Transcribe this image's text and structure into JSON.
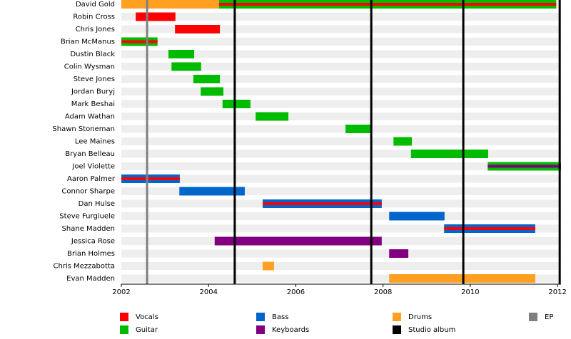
{
  "chart_data": {
    "type": "timeline",
    "roles": [
      {
        "name": "Vocals",
        "color": "#ff0000"
      },
      {
        "name": "Guitar",
        "color": "#00bb00"
      },
      {
        "name": "Bass",
        "color": "#0066cc"
      },
      {
        "name": "Keyboards",
        "color": "#800080"
      },
      {
        "name": "Drums",
        "color": "#ffa020"
      }
    ],
    "releases": [
      {
        "name": "Studio album",
        "color": "#000000",
        "values": [
          2004.6,
          2007.73,
          2009.84,
          2012.05
        ]
      },
      {
        "name": "EP",
        "color": "#808080",
        "values": [
          2002.59
        ]
      }
    ],
    "members": [
      {
        "name": "David Gold",
        "bars": [
          {
            "roles": [
              "Drums"
            ],
            "start": 2002.0,
            "end": 2004.24
          },
          {
            "roles": [
              "Guitar",
              "Vocals"
            ],
            "start": 2004.24,
            "end": 2011.97
          }
        ]
      },
      {
        "name": "Robin Cross",
        "bars": [
          {
            "roles": [
              "Vocals"
            ],
            "start": 2002.33,
            "end": 2003.24
          }
        ]
      },
      {
        "name": "Chris Jones",
        "bars": [
          {
            "roles": [
              "Vocals"
            ],
            "start": 2003.23,
            "end": 2004.26
          }
        ]
      },
      {
        "name": "Brian McManus",
        "bars": [
          {
            "roles": [
              "Guitar",
              "Vocals"
            ],
            "start": 2002.0,
            "end": 2002.83
          }
        ]
      },
      {
        "name": "Dustin Black",
        "bars": [
          {
            "roles": [
              "Guitar"
            ],
            "start": 2003.08,
            "end": 2003.67
          }
        ]
      },
      {
        "name": "Colin Wysman",
        "bars": [
          {
            "roles": [
              "Guitar"
            ],
            "start": 2003.15,
            "end": 2003.83
          }
        ]
      },
      {
        "name": "Steve Jones",
        "bars": [
          {
            "roles": [
              "Guitar"
            ],
            "start": 2003.65,
            "end": 2004.26
          }
        ]
      },
      {
        "name": "Jordan Buryj",
        "bars": [
          {
            "roles": [
              "Guitar"
            ],
            "start": 2003.82,
            "end": 2004.34
          }
        ]
      },
      {
        "name": "Mark Beshai",
        "bars": [
          {
            "roles": [
              "Guitar"
            ],
            "start": 2004.32,
            "end": 2004.96
          }
        ]
      },
      {
        "name": "Adam Wathan",
        "bars": [
          {
            "roles": [
              "Guitar"
            ],
            "start": 2005.08,
            "end": 2005.83
          }
        ]
      },
      {
        "name": "Shawn Stoneman",
        "bars": [
          {
            "roles": [
              "Guitar"
            ],
            "start": 2007.14,
            "end": 2007.74
          }
        ]
      },
      {
        "name": "Lee Maines",
        "bars": [
          {
            "roles": [
              "Guitar"
            ],
            "start": 2008.24,
            "end": 2008.66
          }
        ]
      },
      {
        "name": "Bryan Belleau",
        "bars": [
          {
            "roles": [
              "Guitar"
            ],
            "start": 2008.64,
            "end": 2010.41
          }
        ]
      },
      {
        "name": "Joel Violette",
        "bars": [
          {
            "roles": [
              "Guitar",
              "Keyboards"
            ],
            "start": 2010.4,
            "end": 2012.08
          }
        ]
      },
      {
        "name": "Aaron Palmer",
        "bars": [
          {
            "roles": [
              "Bass",
              "Vocals"
            ],
            "start": 2002.0,
            "end": 2003.34
          }
        ]
      },
      {
        "name": "Connor Sharpe",
        "bars": [
          {
            "roles": [
              "Bass"
            ],
            "start": 2003.33,
            "end": 2004.83
          }
        ]
      },
      {
        "name": "Dan Hulse",
        "bars": [
          {
            "roles": [
              "Bass",
              "Vocals"
            ],
            "start": 2005.24,
            "end": 2007.97
          }
        ]
      },
      {
        "name": "Steve Furgiuele",
        "bars": [
          {
            "roles": [
              "Bass"
            ],
            "start": 2008.14,
            "end": 2009.41
          }
        ]
      },
      {
        "name": "Shane Madden",
        "bars": [
          {
            "roles": [
              "Bass",
              "Vocals"
            ],
            "start": 2009.4,
            "end": 2011.49
          }
        ]
      },
      {
        "name": "Jessica Rose",
        "bars": [
          {
            "roles": [
              "Keyboards"
            ],
            "start": 2004.14,
            "end": 2007.97
          }
        ]
      },
      {
        "name": "Brian Holmes",
        "bars": [
          {
            "roles": [
              "Keyboards"
            ],
            "start": 2008.14,
            "end": 2008.58
          }
        ]
      },
      {
        "name": "Chris Mezzabotta",
        "bars": [
          {
            "roles": [
              "Drums"
            ],
            "start": 2005.24,
            "end": 2005.5
          }
        ]
      },
      {
        "name": "Evan Madden",
        "bars": [
          {
            "roles": [
              "Drums"
            ],
            "start": 2008.14,
            "end": 2011.49
          }
        ]
      }
    ],
    "xlim": [
      2002,
      2012.08
    ],
    "xticks": [
      2002,
      2004,
      2006,
      2008,
      2010,
      2012
    ]
  }
}
